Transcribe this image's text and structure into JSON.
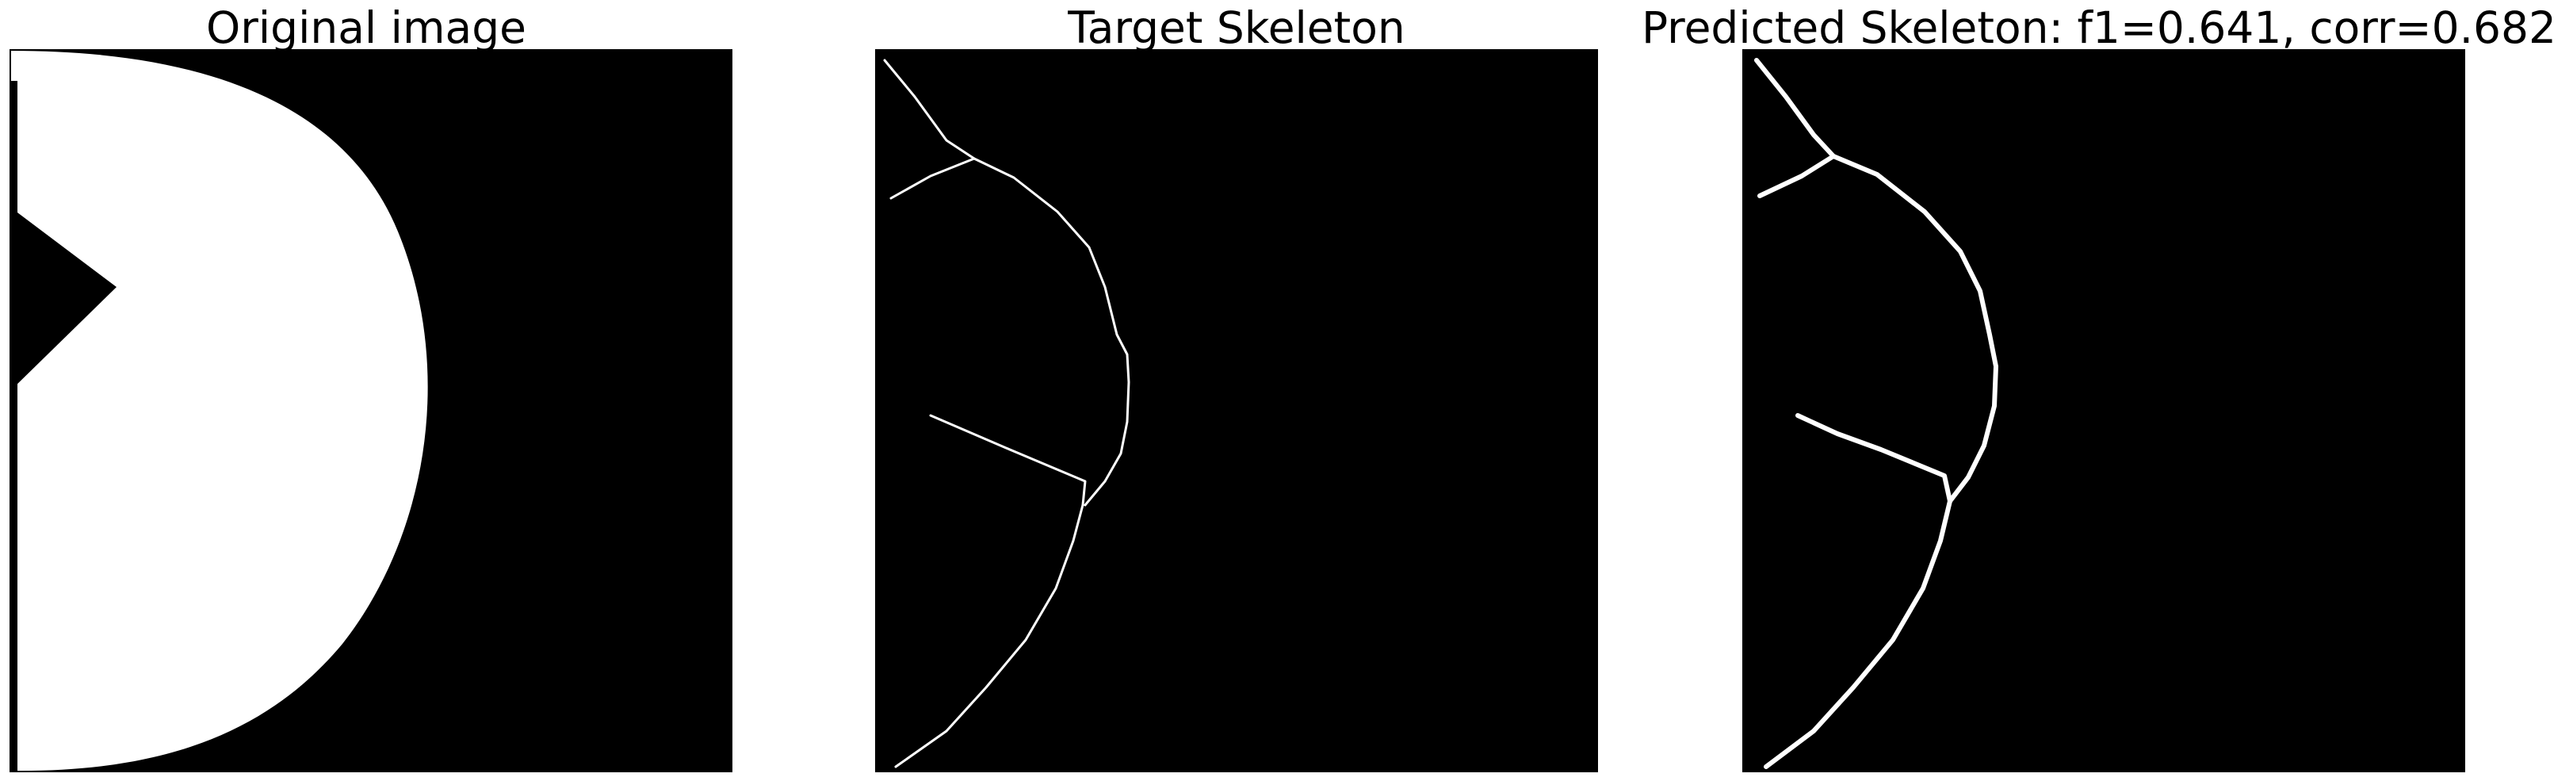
{
  "panels": {
    "original": {
      "title": "Original image"
    },
    "target": {
      "title": "Target Skeleton"
    },
    "predicted": {
      "title": "Predicted Skeleton: f1=0.641, corr=0.682"
    }
  },
  "colors": {
    "background": "#ffffff",
    "image_black": "#000000",
    "image_white": "#ffffff"
  }
}
